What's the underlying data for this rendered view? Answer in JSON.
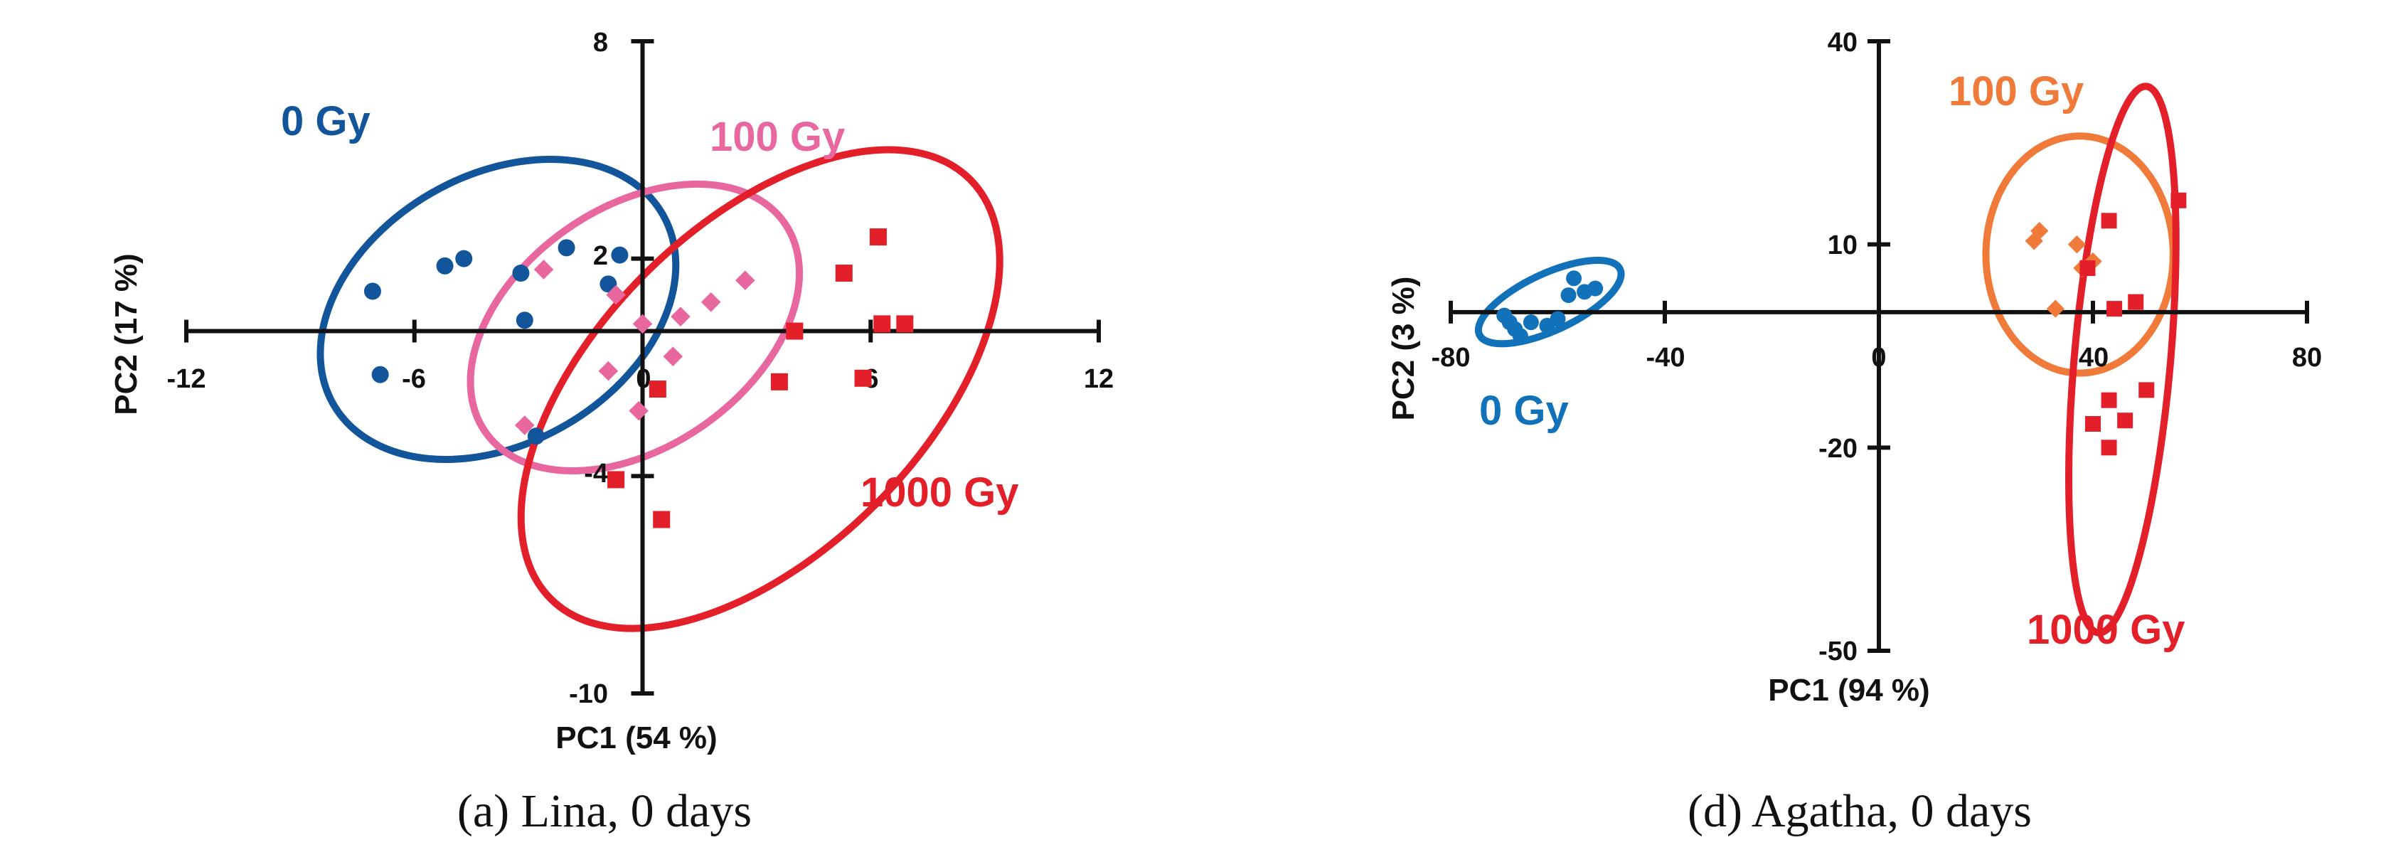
{
  "chart_data": [
    {
      "type": "scatter",
      "caption": "(a) Lina, 0 days",
      "xlabel": "PC1 (54 %)",
      "ylabel": "PC2 (17 %)",
      "xlim": [
        -12,
        12
      ],
      "ylim": [
        -10,
        8
      ],
      "xticks": [
        "-12",
        "-6",
        "0",
        "6",
        "12"
      ],
      "yticks": [
        "8",
        "2",
        "-4",
        "-10"
      ],
      "series": [
        {
          "name": "0 Gy",
          "marker": "circle",
          "color": "#13559a",
          "points": [
            [
              -7.1,
              1.1
            ],
            [
              -6.9,
              -1.2
            ],
            [
              -5.2,
              1.8
            ],
            [
              -4.7,
              2.0
            ],
            [
              -3.2,
              1.6
            ],
            [
              -3.1,
              0.3
            ],
            [
              -2.0,
              2.3
            ],
            [
              -0.9,
              1.3
            ],
            [
              -0.6,
              2.1
            ],
            [
              -2.8,
              -2.9
            ]
          ],
          "ellipse": {
            "cx": -3.8,
            "cy": 0.6,
            "rx": 5.0,
            "ry": 3.7,
            "angle": 30
          }
        },
        {
          "name": "100 Gy",
          "marker": "diamond",
          "color": "#e8679f",
          "points": [
            [
              -2.6,
              1.7
            ],
            [
              -0.7,
              1.0
            ],
            [
              1.0,
              0.4
            ],
            [
              1.8,
              0.8
            ],
            [
              2.7,
              1.4
            ],
            [
              0.0,
              0.2
            ],
            [
              -0.9,
              -1.1
            ],
            [
              0.8,
              -0.7
            ],
            [
              -0.1,
              -2.2
            ],
            [
              -3.1,
              -2.6
            ]
          ],
          "ellipse": {
            "cx": -0.2,
            "cy": 0.1,
            "rx": 4.8,
            "ry": 3.3,
            "angle": 35
          }
        },
        {
          "name": "1000 Gy",
          "marker": "square",
          "color": "#e3202a",
          "points": [
            [
              4.0,
              0.0
            ],
            [
              5.3,
              1.6
            ],
            [
              6.2,
              2.6
            ],
            [
              6.3,
              0.2
            ],
            [
              6.9,
              0.2
            ],
            [
              3.6,
              -1.4
            ],
            [
              5.8,
              -1.3
            ],
            [
              0.4,
              -1.6
            ],
            [
              -0.7,
              -4.1
            ],
            [
              0.5,
              -5.2
            ]
          ],
          "ellipse": {
            "cx": 3.1,
            "cy": -1.6,
            "rx": 7.8,
            "ry": 4.5,
            "angle": 45
          }
        }
      ],
      "annotations": [
        "0 Gy",
        "100 Gy",
        "1000 Gy"
      ]
    },
    {
      "type": "scatter",
      "caption": "(d) Agatha, 0 days",
      "xlabel": "PC1 (94 %)",
      "ylabel": "PC2 (3 %)",
      "xlim": [
        -80,
        80
      ],
      "ylim": [
        -50,
        40
      ],
      "xticks": [
        "-80",
        "-40",
        "0",
        "40",
        "80"
      ],
      "yticks": [
        "40",
        "10",
        "-20",
        "-50"
      ],
      "series": [
        {
          "name": "0 Gy",
          "marker": "circle",
          "color": "#1272b9",
          "points": [
            [
              -70,
              -0.5
            ],
            [
              -68,
              -2.5
            ],
            [
              -67,
              -3.5
            ],
            [
              -65,
              -1.5
            ],
            [
              -60,
              -1.0
            ],
            [
              -62,
              -2.0
            ],
            [
              -58,
              2.5
            ],
            [
              -57,
              5.0
            ],
            [
              -55,
              3.0
            ],
            [
              -53,
              3.5
            ],
            [
              -69,
              -1.5
            ]
          ],
          "ellipse": {
            "cx": -61.5,
            "cy": 1.5,
            "rx": 14.5,
            "ry": 4.2,
            "angle": 25
          }
        },
        {
          "name": "100 Gy",
          "marker": "diamond",
          "color": "#f07a3a",
          "points": [
            [
              30,
              12
            ],
            [
              29,
              10.5
            ],
            [
              37,
              10
            ],
            [
              40,
              7.5
            ],
            [
              33,
              0.5
            ],
            [
              38,
              6.5
            ]
          ],
          "ellipse": {
            "cx": 37.5,
            "cy": 8.5,
            "rx": 17.5,
            "ry": 17.5,
            "angle": 0
          }
        },
        {
          "name": "1000 Gy",
          "marker": "square",
          "color": "#e3202a",
          "points": [
            [
              56,
              16.5
            ],
            [
              43,
              13.5
            ],
            [
              39,
              6.5
            ],
            [
              48,
              1.5
            ],
            [
              44,
              0.5
            ],
            [
              43,
              -13
            ],
            [
              50,
              -11.5
            ],
            [
              40,
              -16.5
            ],
            [
              46,
              -16
            ],
            [
              43,
              -20
            ]
          ],
          "ellipse": {
            "cx": 45.5,
            "cy": -7.0,
            "rx": 9.0,
            "ry": 40.5,
            "angle": -5
          }
        }
      ],
      "annotations": [
        "100 Gy",
        "0 Gy",
        "1000 Gy"
      ]
    }
  ]
}
